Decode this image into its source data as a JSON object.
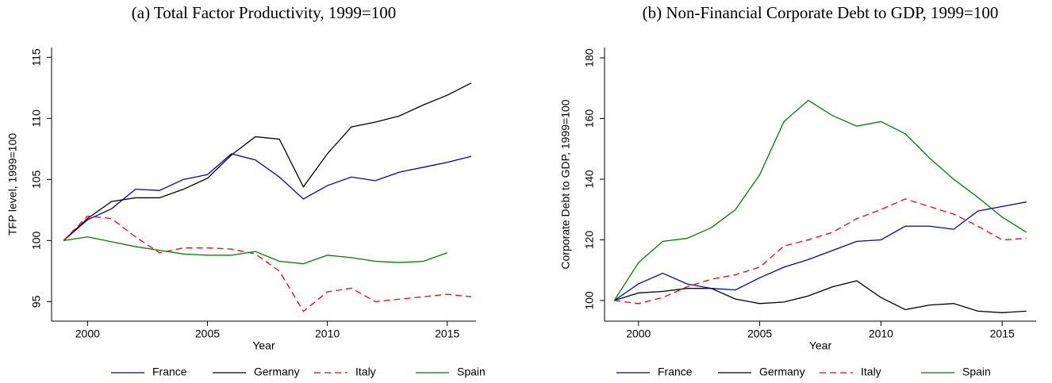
{
  "chart_data": [
    {
      "type": "line",
      "title": "(a) Total Factor Productivity, 1999=100",
      "x_label": "Year",
      "y_label": "TFP level, 1999=100",
      "x": [
        1999,
        2000,
        2001,
        2002,
        2003,
        2004,
        2005,
        2006,
        2007,
        2008,
        2009,
        2010,
        2011,
        2012,
        2013,
        2014,
        2015,
        2016
      ],
      "xlim": [
        1998.5,
        2016.2
      ],
      "xticks": [
        2000,
        2005,
        2010,
        2015
      ],
      "ylim": [
        93.4,
        115.8
      ],
      "yticks": [
        95,
        100,
        105,
        110,
        115
      ],
      "series": [
        {
          "name": "France",
          "color": "#0000cc",
          "style": "solid",
          "values": [
            100,
            101.7,
            102.6,
            104.2,
            104.1,
            105.0,
            105.4,
            107.1,
            106.6,
            105.2,
            103.4,
            104.5,
            105.2,
            104.9,
            105.6,
            106.0,
            106.4,
            106.9
          ]
        },
        {
          "name": "Germany",
          "color": "#000000",
          "style": "solid",
          "values": [
            100,
            101.8,
            103.2,
            103.5,
            103.5,
            104.2,
            105.1,
            107.0,
            108.5,
            108.3,
            104.4,
            107.1,
            109.3,
            109.7,
            110.2,
            111.1,
            111.9,
            112.9
          ]
        },
        {
          "name": "Italy",
          "color": "#ff0000",
          "style": "dashed",
          "values": [
            100,
            102.0,
            101.8,
            100.3,
            99.0,
            99.4,
            99.4,
            99.3,
            98.9,
            97.5,
            94.2,
            95.8,
            96.1,
            95.0,
            95.2,
            95.4,
            95.6,
            95.4
          ]
        },
        {
          "name": "Spain",
          "color": "#008000",
          "style": "solid",
          "values": [
            100,
            100.3,
            99.9,
            99.5,
            99.2,
            98.9,
            98.8,
            98.8,
            99.1,
            98.3,
            98.1,
            98.8,
            98.6,
            98.3,
            98.2,
            98.3,
            99.0,
            null
          ]
        }
      ]
    },
    {
      "type": "line",
      "title": "(b) Non-Financial Corporate Debt to GDP, 1999=100",
      "x_label": "Year",
      "y_label": "Corporate Debt to GDP, 1999=100",
      "x": [
        1999,
        2000,
        2001,
        2002,
        2003,
        2004,
        2005,
        2006,
        2007,
        2008,
        2009,
        2010,
        2011,
        2012,
        2013,
        2014,
        2015,
        2016
      ],
      "xlim": [
        1998.6,
        2016.4
      ],
      "xticks": [
        2000,
        2005,
        2010,
        2015
      ],
      "ylim": [
        93.2,
        183.4
      ],
      "yticks": [
        100,
        120,
        140,
        160,
        180
      ],
      "series": [
        {
          "name": "France",
          "color": "#0000cc",
          "style": "solid",
          "values": [
            100,
            105.5,
            109,
            105.5,
            104,
            103.5,
            107.5,
            111,
            113.5,
            116.5,
            119.5,
            120,
            124.5,
            124.5,
            123.5,
            129.5,
            131,
            132.5
          ]
        },
        {
          "name": "Germany",
          "color": "#000000",
          "style": "solid",
          "values": [
            100,
            102.5,
            103,
            104,
            104,
            100.5,
            99,
            99.5,
            101.5,
            104.5,
            106.5,
            101,
            97,
            98.5,
            99,
            96.5,
            96,
            96.5
          ]
        },
        {
          "name": "Italy",
          "color": "#ff0000",
          "style": "dashed",
          "values": [
            100,
            99,
            101,
            104.5,
            107,
            108.5,
            111,
            118,
            120,
            122.5,
            127,
            130,
            133.5,
            131,
            128.5,
            124.5,
            120,
            120.5
          ]
        },
        {
          "name": "Spain",
          "color": "#008000",
          "style": "solid",
          "values": [
            100,
            112.5,
            119.5,
            120.5,
            124,
            130,
            141.5,
            159,
            166,
            161,
            157.5,
            159,
            155,
            147,
            140,
            134,
            127.5,
            122.5
          ]
        }
      ]
    }
  ]
}
